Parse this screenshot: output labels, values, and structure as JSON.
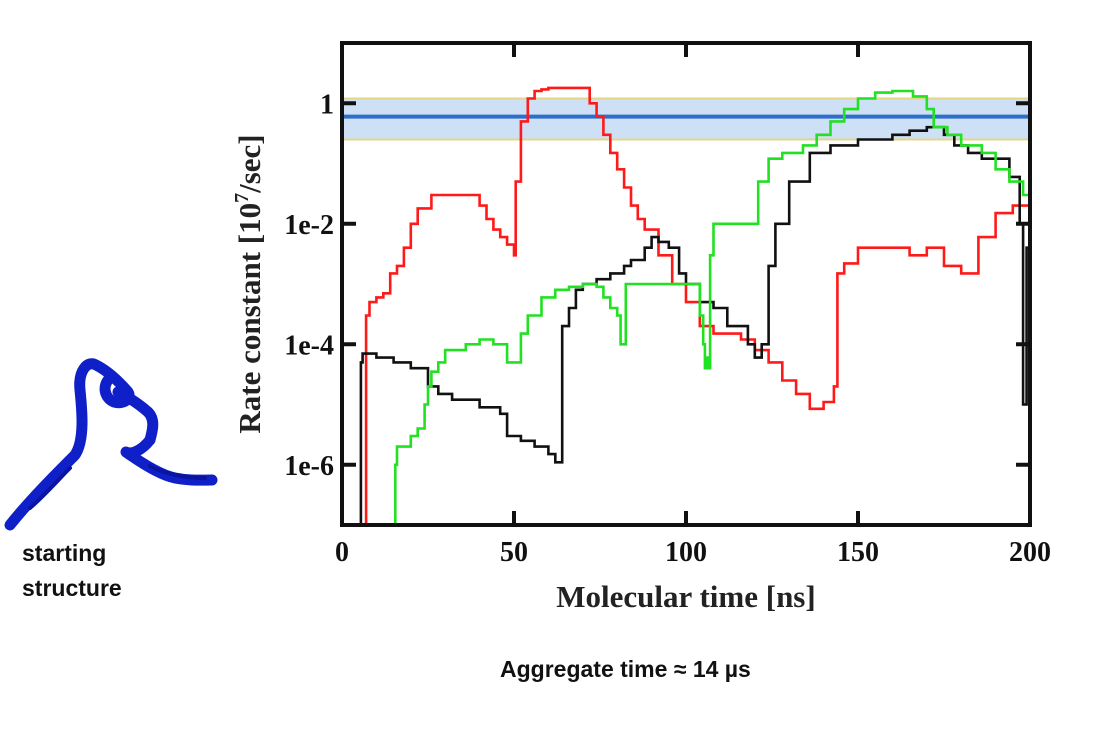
{
  "chart_data": {
    "type": "line",
    "xlabel": "Molecular time  [ns]",
    "ylabel": "Rate constant   [10^7/sec]",
    "ylabel_parts": {
      "before": "Rate constant   [10",
      "exp": "7",
      "after": "/sec]"
    },
    "x_ticks": [
      0,
      50,
      100,
      150,
      200
    ],
    "x_tick_labels": [
      "0",
      "50",
      "100",
      "150",
      "200"
    ],
    "y_ticks": [
      1,
      0.01,
      0.0001,
      1e-06
    ],
    "y_tick_labels": [
      "1",
      "1e-2",
      "1e-4",
      "1e-6"
    ],
    "xlim": [
      0,
      200
    ],
    "ylim": [
      1e-07,
      10
    ],
    "yscale": "log",
    "grid": false,
    "reference_band": {
      "value": 0.6,
      "low": 0.25,
      "high": 1.2,
      "line_color": "#2e6fc9",
      "band_color": "#bcd6f2",
      "edge_color": "#e3d68a"
    },
    "series": [
      {
        "color": "#ff1a1a",
        "x": [
          6,
          7,
          8,
          10,
          12,
          14,
          16,
          18,
          20,
          22,
          26,
          30,
          36,
          40,
          42,
          44,
          46,
          48,
          50,
          50.5,
          52,
          54,
          56,
          58,
          60,
          64,
          68,
          72,
          74,
          76,
          78,
          80,
          82,
          84,
          86,
          88,
          92,
          96,
          100,
          104,
          108,
          112,
          116,
          120,
          124,
          128,
          132,
          136,
          138,
          140,
          143,
          144,
          146,
          150,
          155,
          160,
          165,
          170,
          175,
          180,
          185,
          190,
          195,
          198,
          200
        ],
        "y": [
          1e-07,
          0.0003,
          0.0005,
          0.0006,
          0.0007,
          0.0015,
          0.002,
          0.004,
          0.01,
          0.018,
          0.03,
          0.03,
          0.03,
          0.02,
          0.012,
          0.008,
          0.006,
          0.0045,
          0.003,
          0.05,
          0.5,
          1.2,
          1.6,
          1.7,
          1.8,
          1.8,
          1.8,
          1.0,
          0.6,
          0.3,
          0.15,
          0.08,
          0.04,
          0.02,
          0.012,
          0.008,
          0.003,
          0.001,
          0.0005,
          0.0002,
          0.00015,
          0.00015,
          0.00012,
          8e-05,
          5e-05,
          2.5e-05,
          1.5e-05,
          8.5e-06,
          8.5e-06,
          1.1e-05,
          2e-05,
          0.0015,
          0.0022,
          0.004,
          0.004,
          0.004,
          0.003,
          0.004,
          0.002,
          0.0015,
          0.006,
          0.015,
          0.02,
          0.02,
          0.015
        ]
      },
      {
        "color": "#111111",
        "x": [
          5,
          5.5,
          6,
          8,
          10,
          15,
          20,
          25,
          28,
          32,
          40,
          46,
          48,
          52,
          56,
          60,
          62,
          62.5,
          64,
          66,
          68,
          70,
          74,
          78,
          82,
          84,
          88,
          90,
          92,
          95,
          98,
          100,
          104,
          108,
          112,
          118,
          120,
          122,
          124,
          126,
          130,
          136,
          142,
          150,
          160,
          165,
          170,
          175,
          178,
          182,
          186,
          190,
          194,
          197,
          198,
          199,
          200
        ],
        "y": [
          1e-07,
          5e-05,
          7e-05,
          7e-05,
          6e-05,
          5e-05,
          4e-05,
          2e-05,
          1.5e-05,
          1.2e-05,
          9e-06,
          7e-06,
          3e-06,
          2.5e-06,
          2e-06,
          1.5e-06,
          1.1e-06,
          1.1e-06,
          0.0002,
          0.0004,
          0.0008,
          0.001,
          0.0012,
          0.0015,
          0.002,
          0.0025,
          0.004,
          0.006,
          0.005,
          0.004,
          0.0015,
          0.001,
          0.0005,
          0.0004,
          0.0002,
          0.0001,
          6e-05,
          0.0001,
          0.002,
          0.01,
          0.05,
          0.15,
          0.2,
          0.25,
          0.3,
          0.35,
          0.4,
          0.3,
          0.2,
          0.15,
          0.12,
          0.12,
          0.06,
          0.01,
          1e-05,
          0.004,
          0.05
        ]
      },
      {
        "color": "#22e022",
        "x": [
          15,
          15.5,
          16,
          20,
          22,
          24,
          25,
          26,
          28,
          30,
          36,
          40,
          44,
          48,
          50,
          52,
          54,
          58,
          62,
          66,
          70,
          74,
          76,
          78,
          80,
          81,
          82,
          82.5,
          84,
          88,
          92,
          98,
          102,
          104,
          105,
          105.5,
          106,
          106.5,
          107,
          108,
          110,
          118,
          120,
          121,
          124,
          128,
          134,
          138,
          142,
          146,
          150,
          155,
          160,
          166,
          170,
          172,
          176,
          180,
          186,
          190,
          194,
          198,
          200
        ],
        "y": [
          1e-07,
          1e-06,
          2e-06,
          3e-06,
          4e-06,
          1e-05,
          2e-05,
          3.5e-05,
          5e-05,
          8e-05,
          0.0001,
          0.00012,
          0.0001,
          5e-05,
          5e-05,
          0.00015,
          0.0003,
          0.0006,
          0.0008,
          0.0009,
          0.001,
          0.0009,
          0.0006,
          0.0004,
          0.0003,
          0.0001,
          0.0001,
          0.001,
          0.001,
          0.001,
          0.001,
          0.001,
          0.001,
          0.0003,
          0.0001,
          4e-05,
          6e-05,
          4e-05,
          0.003,
          0.01,
          0.01,
          0.01,
          0.01,
          0.05,
          0.12,
          0.15,
          0.2,
          0.3,
          0.5,
          0.8,
          1.2,
          1.5,
          1.6,
          1.3,
          0.8,
          0.4,
          0.3,
          0.2,
          0.15,
          0.08,
          0.05,
          0.03,
          0.02
        ]
      }
    ]
  },
  "labels": {
    "structure": [
      "starting",
      "structure"
    ],
    "aggregate": "Aggregate time ≈  14 µs"
  }
}
